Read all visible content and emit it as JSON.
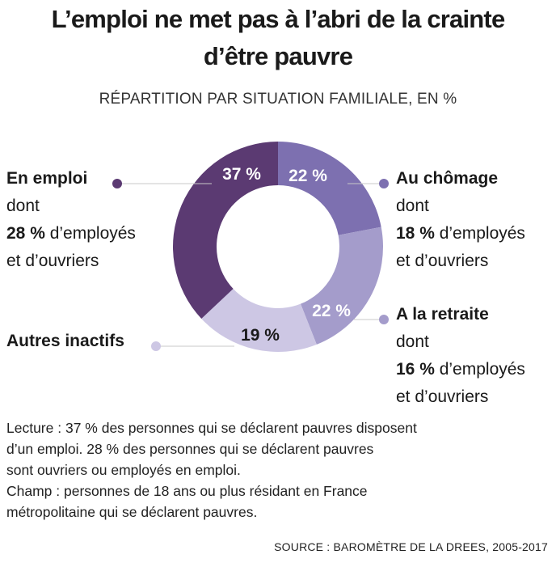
{
  "title_line1": "L’emploi ne met pas à l’abri de la crainte",
  "title_line2": "d’être pauvre",
  "subtitle": "RÉPARTITION PAR SITUATION FAMILIALE, EN %",
  "chart_data": {
    "type": "pie",
    "donut": true,
    "slices": [
      {
        "name": "Au chômage",
        "value": 22,
        "label": "22 %",
        "color": "#7d70b0"
      },
      {
        "name": "A la retraite",
        "value": 22,
        "label": "22 %",
        "color": "#a49ccb"
      },
      {
        "name": "Autres inactifs",
        "value": 19,
        "label": "19 %",
        "color": "#cdc7e4"
      },
      {
        "name": "En emploi",
        "value": 37,
        "label": "37 %",
        "color": "#5b3a72"
      }
    ]
  },
  "labels": {
    "emploi": {
      "name": "En emploi",
      "l2": "dont",
      "pct": "28 %",
      "l3": " d’employés",
      "l4": "et d’ouvriers"
    },
    "chomage": {
      "name": "Au chômage",
      "l2": "dont",
      "pct": "18 %",
      "l3": " d’employés",
      "l4": "et d’ouvriers"
    },
    "retraite": {
      "name": "A la retraite",
      "l2": "dont",
      "pct": "16 %",
      "l3": " d’employés",
      "l4": "et d’ouvriers"
    },
    "inactifs": {
      "name": "Autres inactifs"
    }
  },
  "note": {
    "l1": "Lecture : 37 % des personnes qui se déclarent pauvres disposent",
    "l2": "d’un emploi. 28 % des personnes qui se déclarent pauvres",
    "l3": "sont ouvriers ou employés en emploi.",
    "l4": "Champ : personnes de 18 ans ou plus résidant en France",
    "l5": "métropolitaine qui se déclarent pauvres."
  },
  "source": "SOURCE : BAROMÈTRE DE LA DREES, 2005-2017"
}
